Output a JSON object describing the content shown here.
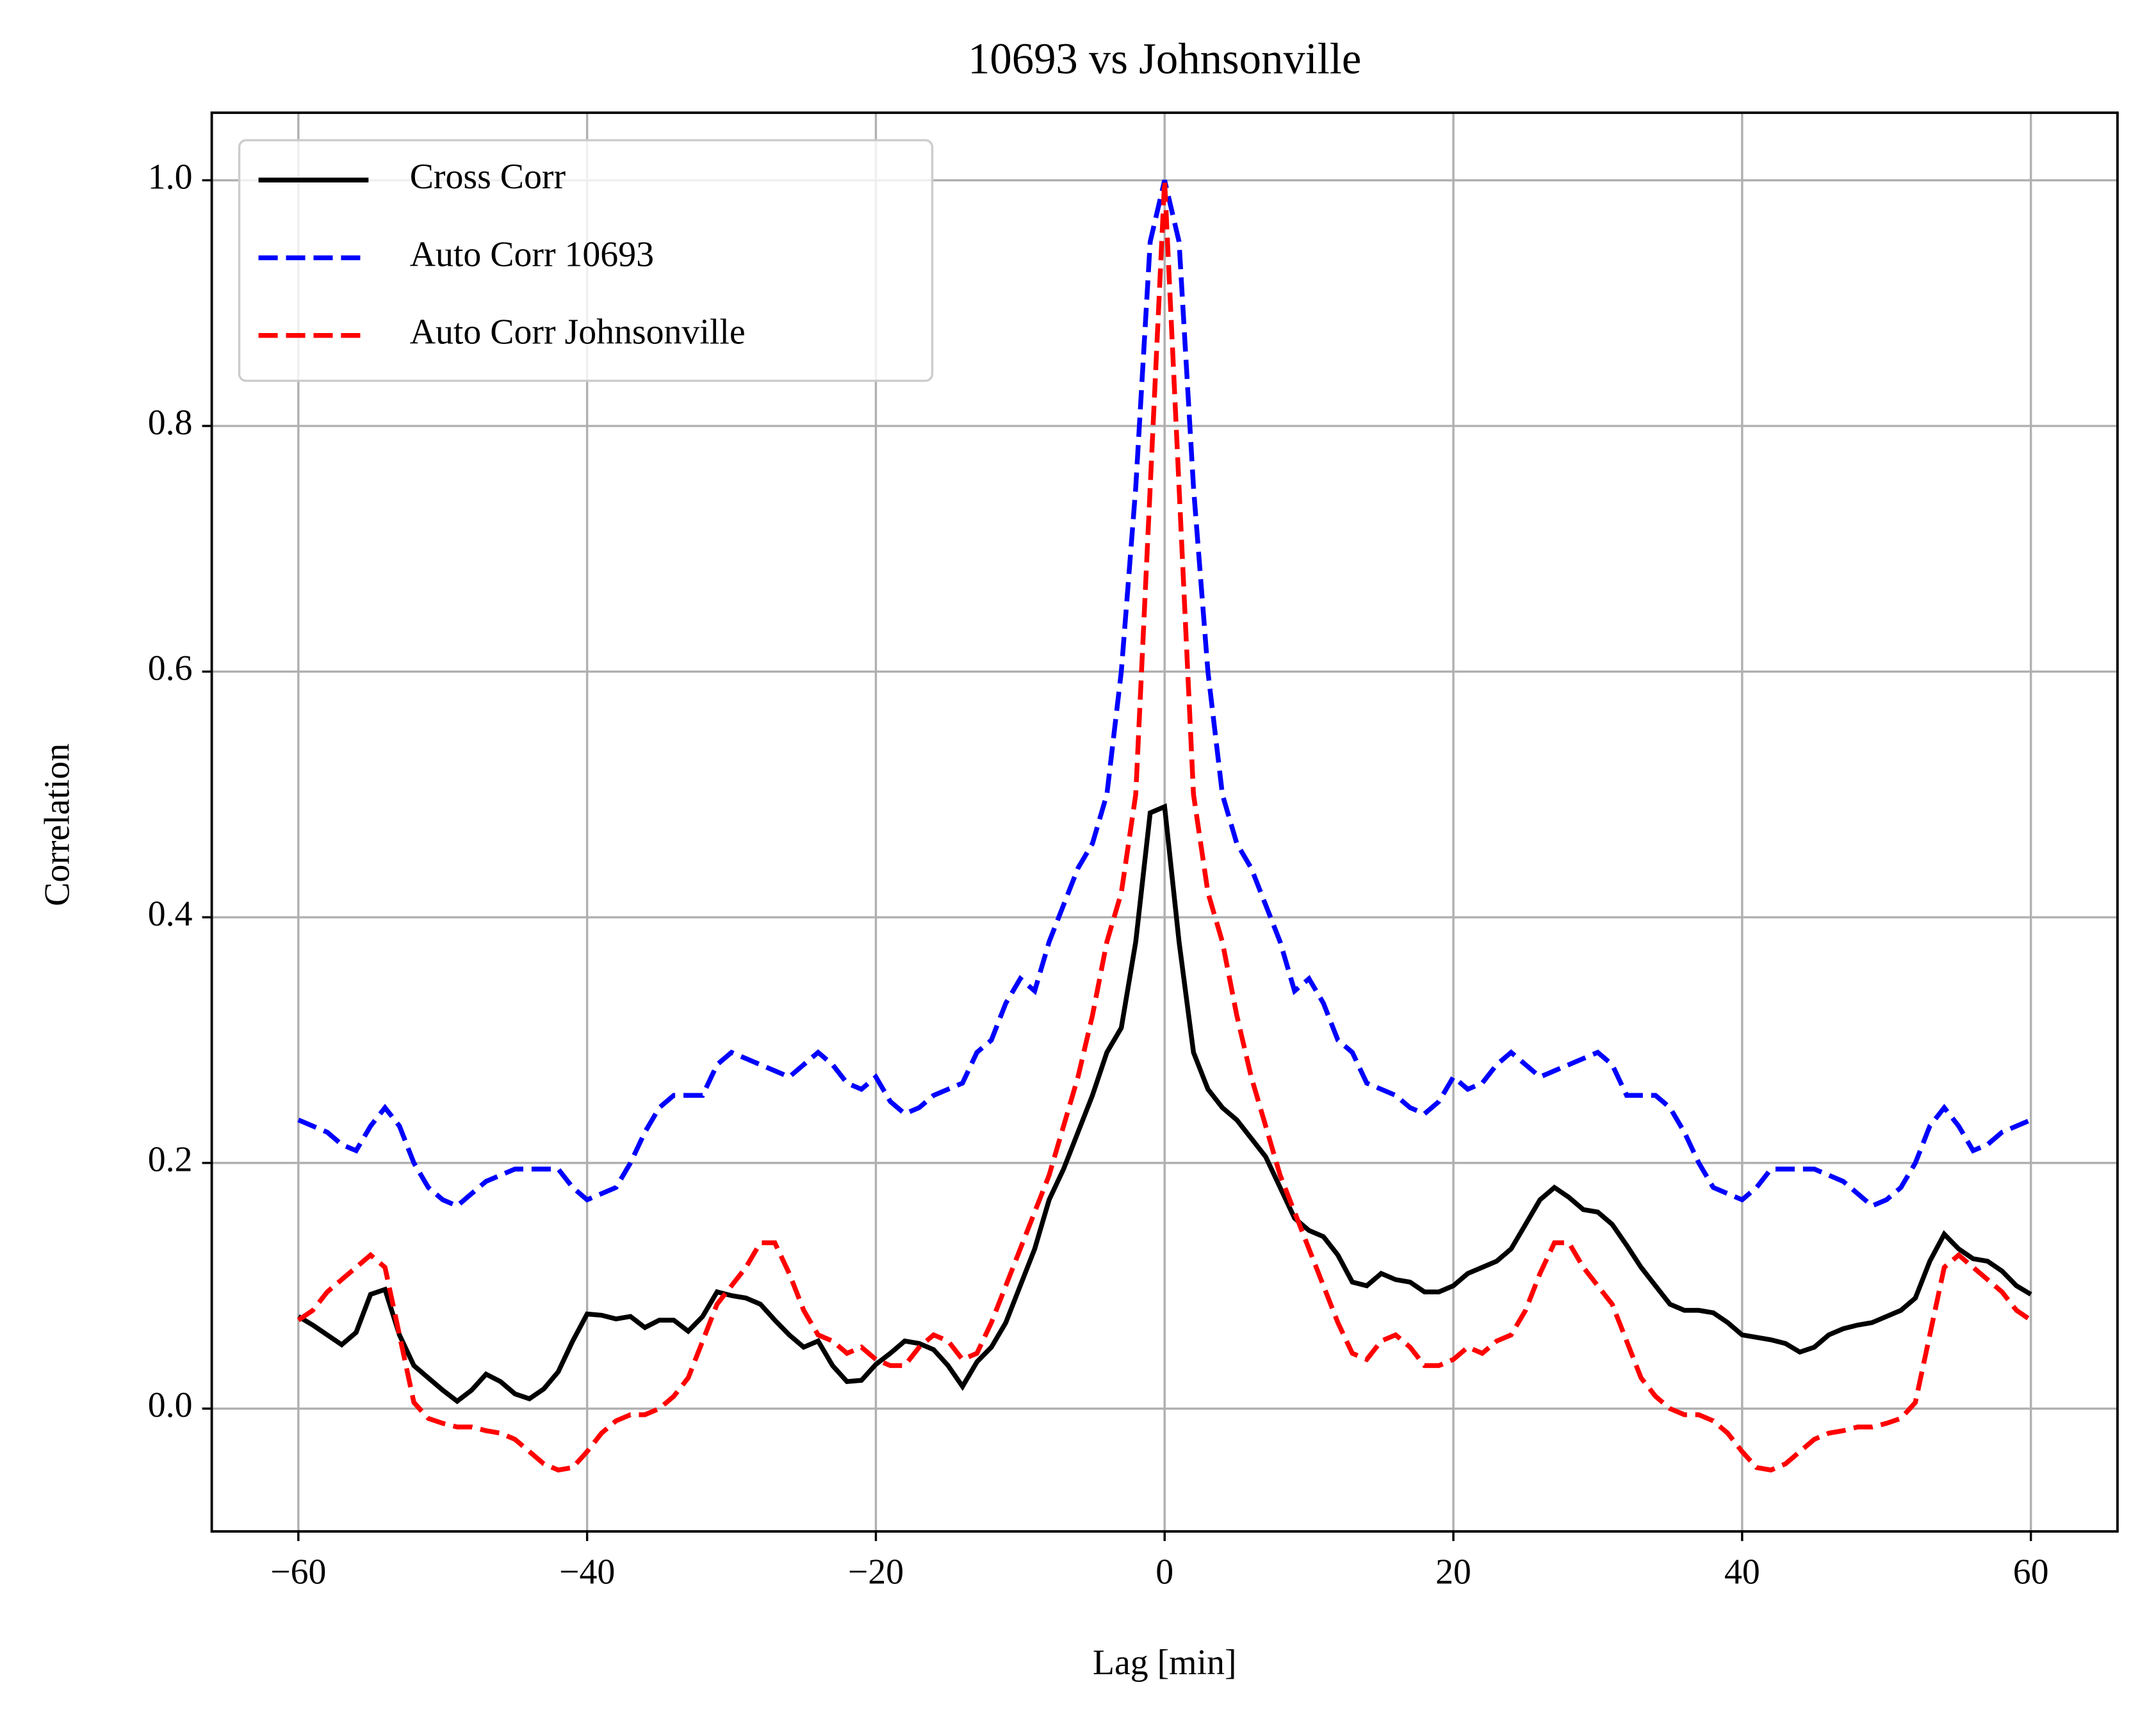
{
  "chart_data": {
    "type": "line",
    "title": "10693 vs Johnsonville",
    "xlabel": "Lag [min]",
    "ylabel": "Correlation",
    "x": [
      -60,
      -59,
      -58,
      -57,
      -56,
      -55,
      -54,
      -53,
      -52,
      -51,
      -50,
      -49,
      -48,
      -47,
      -46,
      -45,
      -44,
      -43,
      -42,
      -41,
      -40,
      -39,
      -38,
      -37,
      -36,
      -35,
      -34,
      -33,
      -32,
      -31,
      -30,
      -29,
      -28,
      -27,
      -26,
      -25,
      -24,
      -23,
      -22,
      -21,
      -20,
      -19,
      -18,
      -17,
      -16,
      -15,
      -14,
      -13,
      -12,
      -11,
      -10,
      -9,
      -8,
      -7,
      -6,
      -5,
      -4,
      -3,
      -2,
      -1,
      0,
      1,
      2,
      3,
      4,
      5,
      6,
      7,
      8,
      9,
      10,
      11,
      12,
      13,
      14,
      15,
      16,
      17,
      18,
      19,
      20,
      21,
      22,
      23,
      24,
      25,
      26,
      27,
      28,
      29,
      30,
      31,
      32,
      33,
      34,
      35,
      36,
      37,
      38,
      39,
      40,
      41,
      42,
      43,
      44,
      45,
      46,
      47,
      48,
      49,
      50,
      51,
      52,
      53,
      54,
      55,
      56,
      57,
      58,
      59,
      60
    ],
    "series": [
      {
        "name": "Cross Corr",
        "color": "#000000",
        "linestyle": "solid",
        "values": [
          0.075,
          0.068,
          0.06,
          0.052,
          0.062,
          0.093,
          0.097,
          0.06,
          0.035,
          0.025,
          0.015,
          0.006,
          0.015,
          0.028,
          0.022,
          0.012,
          0.008,
          0.016,
          0.03,
          0.055,
          0.077,
          0.076,
          0.073,
          0.075,
          0.066,
          0.072,
          0.072,
          0.063,
          0.075,
          0.095,
          0.092,
          0.09,
          0.085,
          0.072,
          0.06,
          0.05,
          0.055,
          0.035,
          0.022,
          0.023,
          0.036,
          0.045,
          0.055,
          0.053,
          0.048,
          0.035,
          0.018,
          0.038,
          0.05,
          0.07,
          0.1,
          0.13,
          0.17,
          0.195,
          0.225,
          0.255,
          0.29,
          0.31,
          0.38,
          0.485,
          0.49,
          0.38,
          0.29,
          0.26,
          0.245,
          0.235,
          0.22,
          0.205,
          0.18,
          0.155,
          0.145,
          0.14,
          0.125,
          0.103,
          0.1,
          0.11,
          0.105,
          0.103,
          0.095,
          0.095,
          0.1,
          0.11,
          0.115,
          0.12,
          0.13,
          0.15,
          0.17,
          0.18,
          0.172,
          0.162,
          0.16,
          0.15,
          0.133,
          0.115,
          0.1,
          0.085,
          0.08,
          0.08,
          0.078,
          0.07,
          0.06,
          0.058,
          0.056,
          0.053,
          0.046,
          0.05,
          0.06,
          0.065,
          0.068,
          0.07,
          0.075,
          0.08,
          0.09,
          0.12,
          0.142,
          0.13,
          0.122,
          0.12,
          0.112,
          0.1,
          0.093
        ]
      },
      {
        "name": "Auto Corr 10693",
        "color": "#0000ff",
        "linestyle": "dashed",
        "values": [
          0.235,
          0.23,
          0.225,
          0.215,
          0.21,
          0.23,
          0.245,
          0.23,
          0.2,
          0.18,
          0.17,
          0.165,
          0.175,
          0.185,
          0.19,
          0.195,
          0.195,
          0.195,
          0.195,
          0.18,
          0.17,
          0.175,
          0.18,
          0.2,
          0.225,
          0.245,
          0.255,
          0.255,
          0.255,
          0.28,
          0.29,
          0.285,
          0.28,
          0.275,
          0.27,
          0.28,
          0.29,
          0.28,
          0.265,
          0.26,
          0.27,
          0.25,
          0.24,
          0.245,
          0.255,
          0.26,
          0.265,
          0.29,
          0.3,
          0.33,
          0.35,
          0.34,
          0.38,
          0.41,
          0.44,
          0.46,
          0.5,
          0.6,
          0.75,
          0.95,
          1.0,
          0.95,
          0.75,
          0.6,
          0.5,
          0.46,
          0.44,
          0.41,
          0.38,
          0.34,
          0.35,
          0.33,
          0.3,
          0.29,
          0.265,
          0.26,
          0.255,
          0.245,
          0.24,
          0.25,
          0.27,
          0.26,
          0.265,
          0.28,
          0.29,
          0.28,
          0.27,
          0.275,
          0.28,
          0.285,
          0.29,
          0.28,
          0.255,
          0.255,
          0.255,
          0.245,
          0.225,
          0.2,
          0.18,
          0.175,
          0.17,
          0.18,
          0.195,
          0.195,
          0.195,
          0.195,
          0.19,
          0.185,
          0.175,
          0.165,
          0.17,
          0.18,
          0.2,
          0.23,
          0.245,
          0.23,
          0.21,
          0.215,
          0.225,
          0.23,
          0.235
        ]
      },
      {
        "name": "Auto Corr Johnsonville",
        "color": "#ff0000",
        "linestyle": "dashed",
        "values": [
          0.072,
          0.08,
          0.095,
          0.105,
          0.115,
          0.125,
          0.115,
          0.06,
          0.005,
          -0.008,
          -0.012,
          -0.015,
          -0.015,
          -0.018,
          -0.02,
          -0.025,
          -0.035,
          -0.045,
          -0.05,
          -0.048,
          -0.035,
          -0.02,
          -0.01,
          -0.005,
          -0.005,
          0,
          0.01,
          0.025,
          0.055,
          0.085,
          0.1,
          0.115,
          0.135,
          0.135,
          0.11,
          0.08,
          0.06,
          0.055,
          0.045,
          0.05,
          0.04,
          0.035,
          0.035,
          0.05,
          0.06,
          0.055,
          0.04,
          0.045,
          0.07,
          0.1,
          0.13,
          0.16,
          0.19,
          0.23,
          0.27,
          0.32,
          0.38,
          0.42,
          0.5,
          0.75,
          1.0,
          0.75,
          0.5,
          0.42,
          0.38,
          0.32,
          0.27,
          0.23,
          0.19,
          0.16,
          0.13,
          0.1,
          0.07,
          0.045,
          0.04,
          0.055,
          0.06,
          0.05,
          0.035,
          0.035,
          0.04,
          0.05,
          0.045,
          0.055,
          0.06,
          0.08,
          0.11,
          0.135,
          0.135,
          0.115,
          0.1,
          0.085,
          0.055,
          0.025,
          0.01,
          0,
          -0.005,
          -0.005,
          -0.01,
          -0.02,
          -0.035,
          -0.048,
          -0.05,
          -0.045,
          -0.035,
          -0.025,
          -0.02,
          -0.018,
          -0.015,
          -0.015,
          -0.012,
          -0.008,
          0.005,
          0.06,
          0.115,
          0.125,
          0.115,
          0.105,
          0.095,
          0.08,
          0.072
        ]
      }
    ],
    "xlim": [
      -66,
      66
    ],
    "ylim": [
      -0.1,
      1.055
    ],
    "xticks": [
      {
        "value": -60,
        "label": "−60"
      },
      {
        "value": -40,
        "label": "−40"
      },
      {
        "value": -20,
        "label": "−20"
      },
      0,
      20,
      40,
      60
    ],
    "yticks": [
      {
        "value": 0,
        "label": "0.0"
      },
      0.2,
      0.4,
      0.6,
      0.8,
      {
        "value": 1,
        "label": "1.0"
      }
    ],
    "grid": true,
    "legend": "upper left"
  }
}
